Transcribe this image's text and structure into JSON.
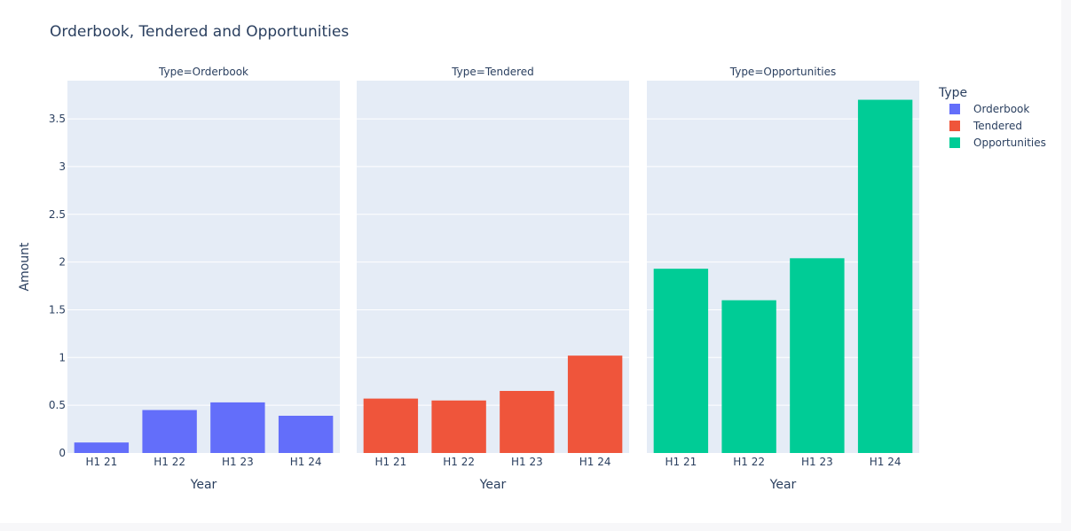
{
  "chart_data": {
    "type": "bar",
    "title": "Orderbook, Tendered and Opportunities",
    "ylabel": "Amount",
    "xlabel": "Year",
    "ylim": [
      0,
      3.9
    ],
    "yticks": [
      0,
      0.5,
      1,
      1.5,
      2,
      2.5,
      3,
      3.5
    ],
    "ytick_labels": [
      "0",
      "0.5",
      "1",
      "1.5",
      "2",
      "2.5",
      "3",
      "3.5"
    ],
    "grid": true,
    "categories": [
      "H1 21",
      "H1 22",
      "H1 23",
      "H1 24"
    ],
    "legend": {
      "title": "Type",
      "placement": "right"
    },
    "facets": [
      {
        "subtitle": "Type=Orderbook",
        "xlabel": "Year",
        "series": [
          {
            "name": "Orderbook",
            "color": "#636efa",
            "values": [
              0.11,
              0.45,
              0.53,
              0.39
            ]
          }
        ]
      },
      {
        "subtitle": "Type=Tendered",
        "xlabel": "Year",
        "series": [
          {
            "name": "Tendered",
            "color": "#ef553b",
            "values": [
              0.57,
              0.55,
              0.65,
              1.02
            ]
          }
        ]
      },
      {
        "subtitle": "Type=Opportunities",
        "xlabel": "Year",
        "series": [
          {
            "name": "Opportunities",
            "color": "#00cc96",
            "values": [
              1.93,
              1.6,
              2.04,
              3.7
            ]
          }
        ]
      }
    ]
  }
}
